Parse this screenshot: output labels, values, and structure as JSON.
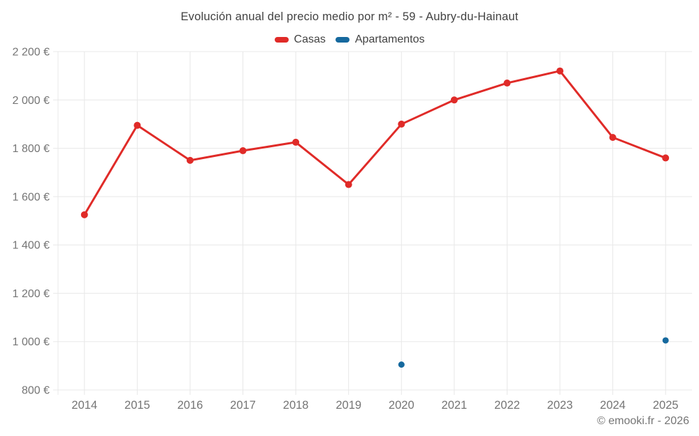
{
  "header": {
    "title": "Evolución anual del precio medio por m² - 59 - Aubry-du-Hainaut"
  },
  "legend": {
    "items": [
      {
        "label": "Casas",
        "color": "#e02b28"
      },
      {
        "label": "Apartamentos",
        "color": "#16699e"
      }
    ]
  },
  "footer": {
    "credit": "© emooki.fr - 2026"
  },
  "colors": {
    "grid": "#e8e8e8",
    "axis_text": "#757575",
    "title_text": "#424242"
  },
  "chart_data": {
    "type": "line",
    "title": "Evolución anual del precio medio por m² - 59 - Aubry-du-Hainaut",
    "categories": [
      "2014",
      "2015",
      "2016",
      "2017",
      "2018",
      "2019",
      "2020",
      "2021",
      "2022",
      "2023",
      "2024",
      "2025"
    ],
    "series": [
      {
        "name": "Casas",
        "color": "#e02b28",
        "marker_radius": 5,
        "line_width": 3,
        "values": [
          1525,
          1895,
          1750,
          1790,
          1825,
          1650,
          1900,
          2000,
          2070,
          2120,
          1845,
          1760
        ]
      },
      {
        "name": "Apartamentos",
        "color": "#16699e",
        "marker_radius": 4.5,
        "line_width": 3,
        "values": [
          null,
          null,
          null,
          null,
          null,
          null,
          905,
          null,
          null,
          null,
          null,
          1005
        ]
      }
    ],
    "xlabel": "",
    "ylabel": "",
    "ylim": [
      800,
      2200
    ],
    "ytick_step": 200,
    "ytick_suffix": " €",
    "grid": true,
    "legend_position": "top",
    "footer": "© emooki.fr - 2026"
  }
}
